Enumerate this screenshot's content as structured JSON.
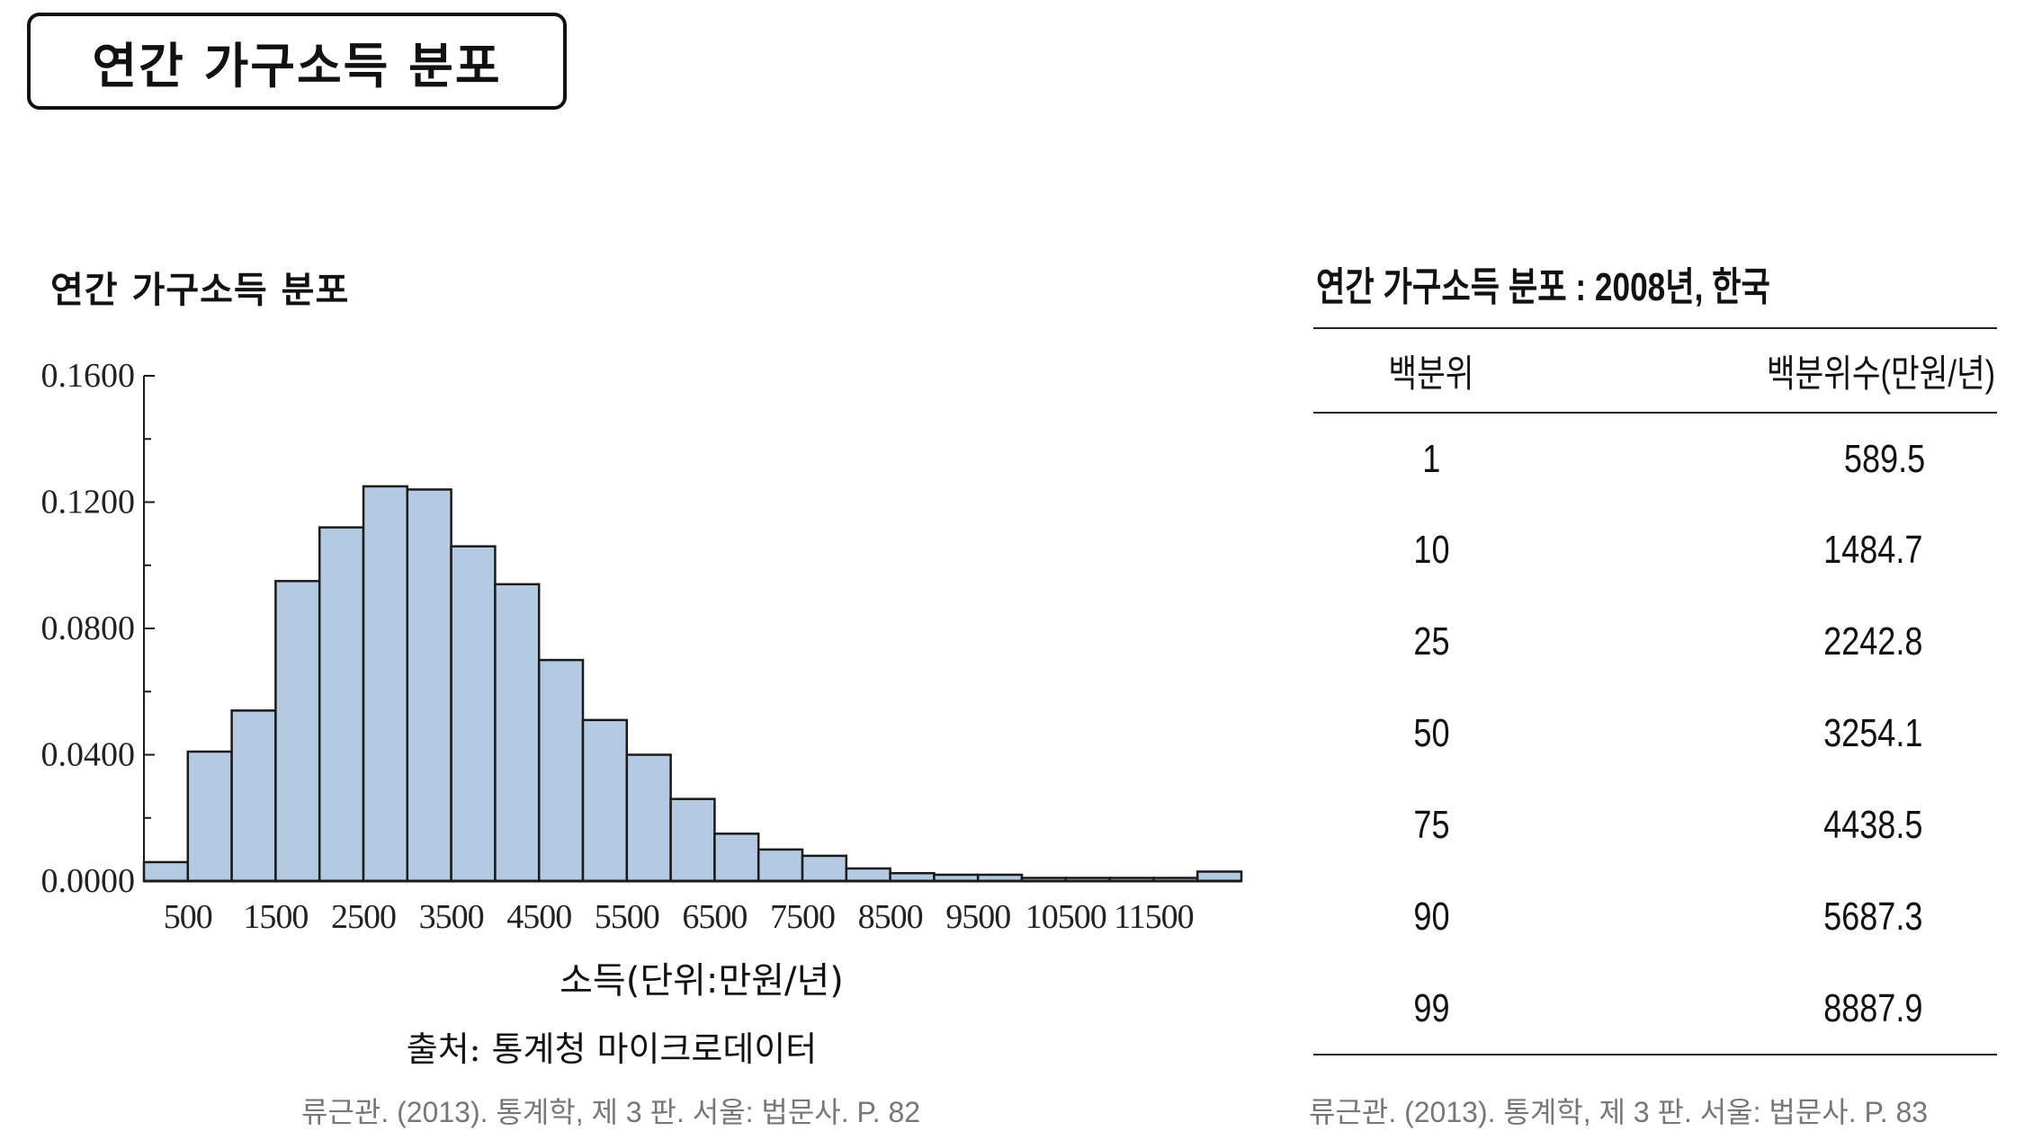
{
  "page": {
    "title": "연간 가구소득 분포"
  },
  "histogram": {
    "heading": "연간 가구소득 분포",
    "source": "출처: 통계청 마이크로데이터"
  },
  "citations": {
    "left": "류근관. (2013). 통계학, 제 3 판. 서울: 법문사. P. 82",
    "right": "류근관. (2013). 통계학, 제 3 판. 서울: 법문사. P. 83"
  },
  "chart_data": {
    "type": "bar",
    "title": "연간 가구소득 분포",
    "xlabel": "소득(단위:만원/년)",
    "ylabel": "",
    "bin_width": 500,
    "x": [
      250,
      750,
      1250,
      1750,
      2250,
      2750,
      3250,
      3750,
      4250,
      4750,
      5250,
      5750,
      6250,
      6750,
      7250,
      7750,
      8250,
      8750,
      9250,
      9750,
      10250,
      10750,
      11250,
      11750,
      12250
    ],
    "values": [
      0.006,
      0.041,
      0.054,
      0.095,
      0.112,
      0.125,
      0.124,
      0.106,
      0.094,
      0.07,
      0.051,
      0.04,
      0.026,
      0.015,
      0.01,
      0.008,
      0.004,
      0.0025,
      0.002,
      0.002,
      0.001,
      0.001,
      0.001,
      0.001,
      0.003
    ],
    "xtick_values": [
      500,
      1500,
      2500,
      3500,
      4500,
      5500,
      6500,
      7500,
      8500,
      9500,
      10500,
      11500
    ],
    "xtick_labels": [
      "500",
      "1500",
      "2500",
      "3500",
      "4500",
      "5500",
      "6500",
      "7500",
      "8500",
      "9500",
      "10500",
      "11500"
    ],
    "yticks": [
      "0.0000",
      "0.0400",
      "0.0800",
      "0.1200",
      "0.1600"
    ],
    "ylim": [
      0,
      0.16
    ],
    "xlim": [
      0,
      12500
    ],
    "grid": false,
    "bar_color": "#b4c9e2"
  },
  "table": {
    "title": "연간 가구소득 분포 : 2008년, 한국",
    "headers": [
      "백분위",
      "백분위수(만원/년)"
    ],
    "rows": [
      [
        "1",
        "589.5"
      ],
      [
        "10",
        "1484.7"
      ],
      [
        "25",
        "2242.8"
      ],
      [
        "50",
        "3254.1"
      ],
      [
        "75",
        "4438.5"
      ],
      [
        "90",
        "5687.3"
      ],
      [
        "99",
        "8887.9"
      ]
    ]
  }
}
